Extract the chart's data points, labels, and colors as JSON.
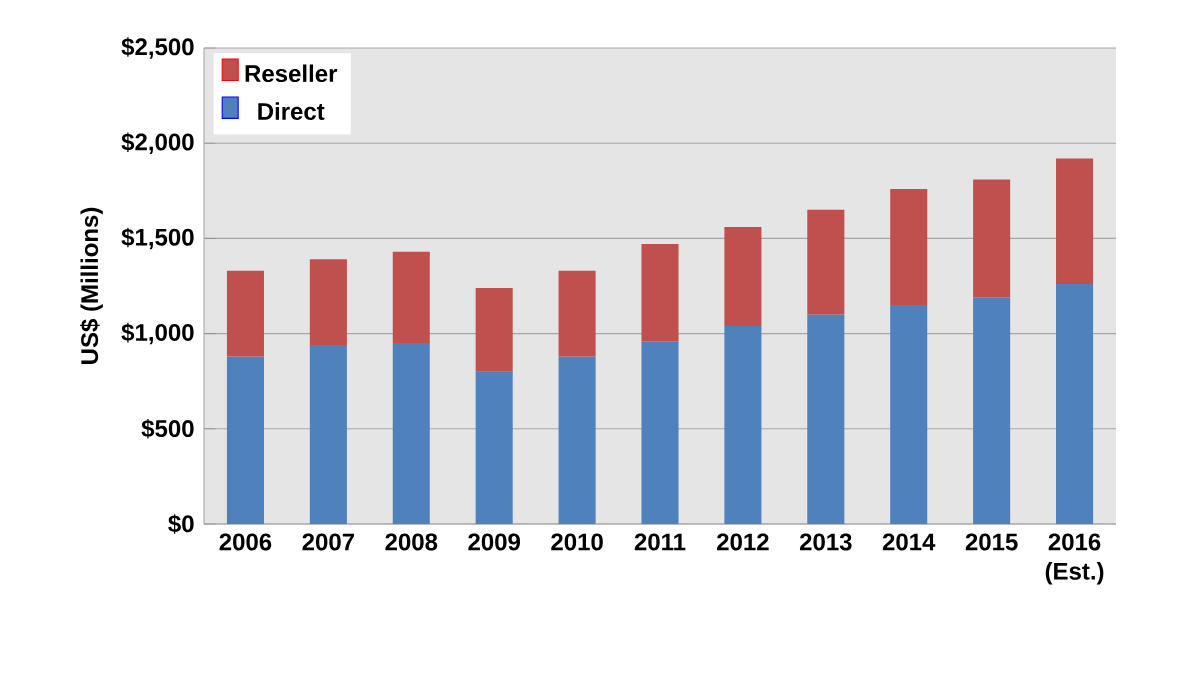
{
  "chart_data": {
    "type": "bar",
    "stacked": true,
    "ylabel": "US$ (Millions)",
    "categories": [
      "2006",
      "2007",
      "2008",
      "2009",
      "2010",
      "2011",
      "2012",
      "2013",
      "2014",
      "2015",
      "2016 (Est.)"
    ],
    "series": [
      {
        "name": "Direct",
        "color": "#4f81bd",
        "values": [
          880,
          940,
          950,
          800,
          880,
          960,
          1040,
          1100,
          1150,
          1190,
          1260
        ]
      },
      {
        "name": "Reseller",
        "color": "#c0504d",
        "values": [
          450,
          450,
          480,
          440,
          450,
          510,
          520,
          550,
          610,
          620,
          660
        ]
      }
    ],
    "ylim": [
      0,
      2500
    ],
    "yticks": [
      {
        "value": 0,
        "label": "$0"
      },
      {
        "value": 500,
        "label": "$500"
      },
      {
        "value": 1000,
        "label": "$1,000"
      },
      {
        "value": 1500,
        "label": "$1,500"
      },
      {
        "value": 2000,
        "label": "$2,000"
      },
      {
        "value": 2500,
        "label": "$2,500"
      }
    ],
    "grid": "y",
    "legend": "top left"
  }
}
